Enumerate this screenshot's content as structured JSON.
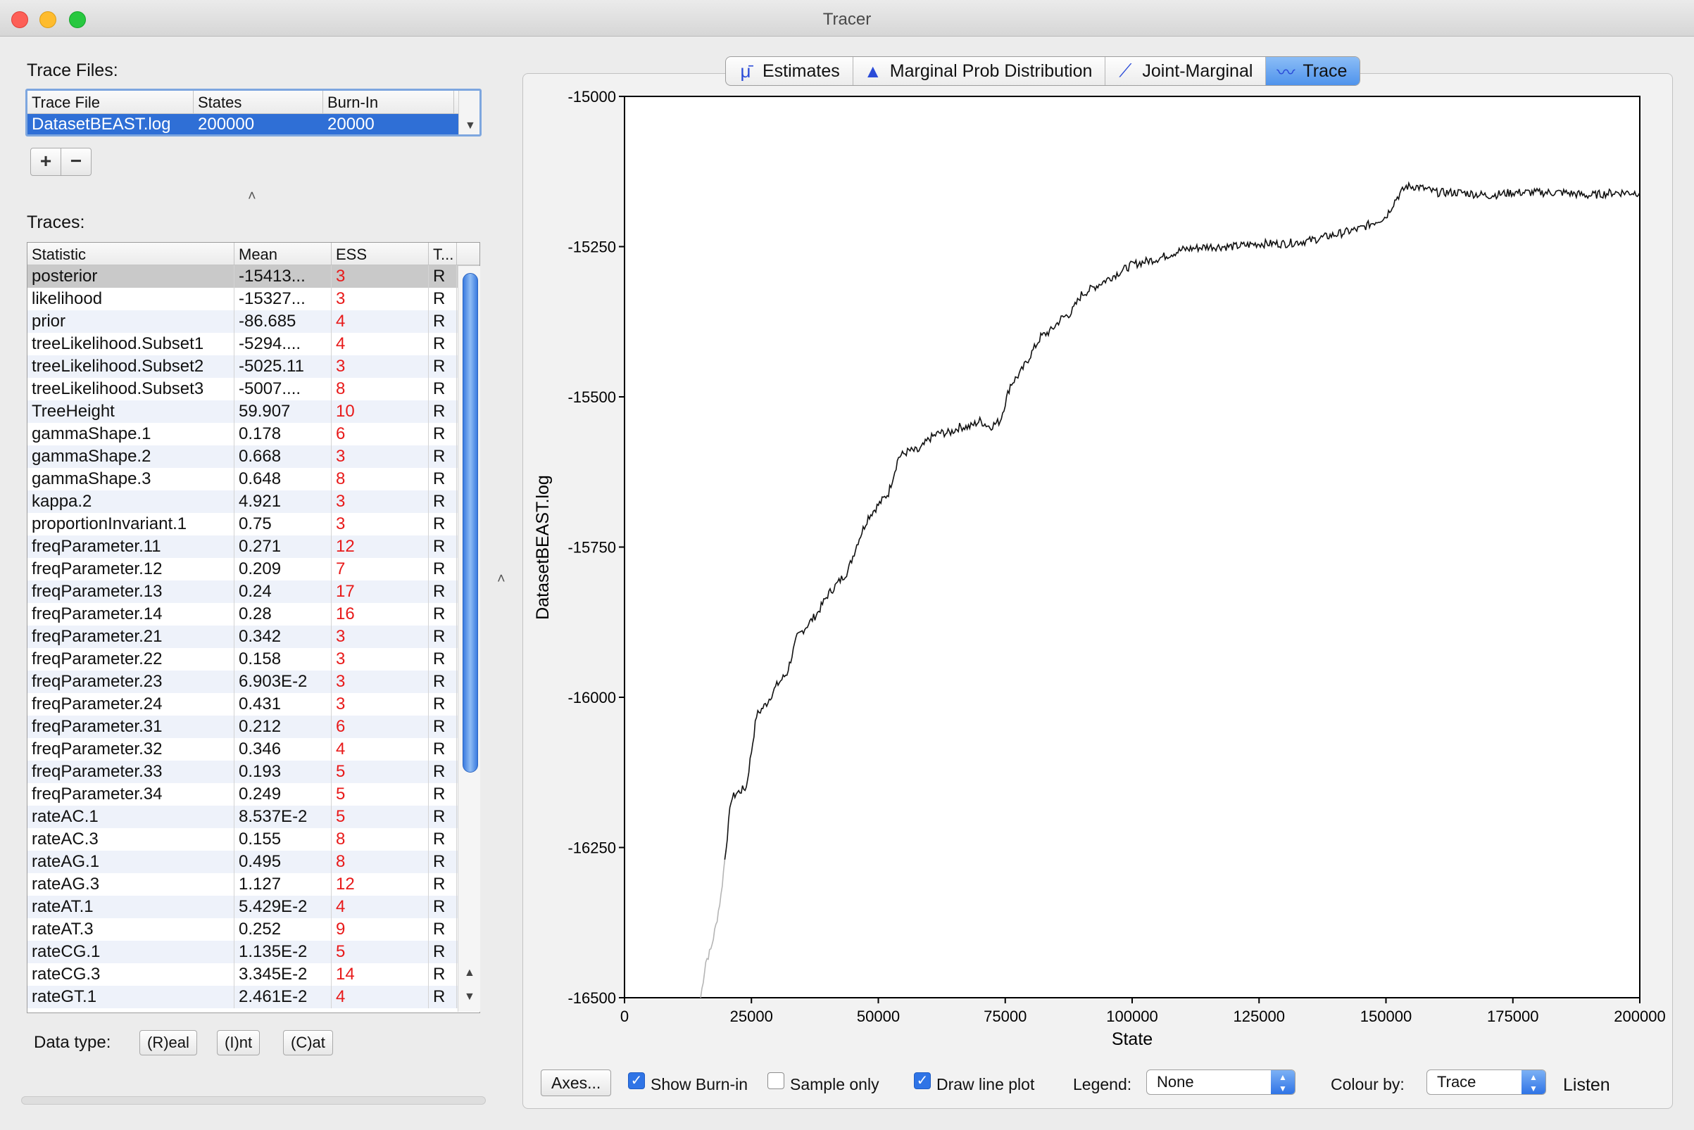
{
  "window": {
    "title": "Tracer"
  },
  "left": {
    "trace_files_label": "Trace Files:",
    "files_table": {
      "headers": [
        "Trace File",
        "States",
        "Burn-In"
      ],
      "rows": [
        [
          "DatasetBEAST.log",
          "200000",
          "20000"
        ]
      ]
    },
    "add_label": "+",
    "remove_label": "−",
    "traces_label": "Traces:",
    "traces_table": {
      "headers": [
        "Statistic",
        "Mean",
        "ESS",
        "T..."
      ],
      "rows": [
        [
          "posterior",
          "-15413...",
          "3",
          "R"
        ],
        [
          "likelihood",
          "-15327...",
          "3",
          "R"
        ],
        [
          "prior",
          "-86.685",
          "4",
          "R"
        ],
        [
          "treeLikelihood.Subset1",
          "-5294....",
          "4",
          "R"
        ],
        [
          "treeLikelihood.Subset2",
          "-5025.11",
          "3",
          "R"
        ],
        [
          "treeLikelihood.Subset3",
          "-5007....",
          "8",
          "R"
        ],
        [
          "TreeHeight",
          "59.907",
          "10",
          "R"
        ],
        [
          "gammaShape.1",
          "0.178",
          "6",
          "R"
        ],
        [
          "gammaShape.2",
          "0.668",
          "3",
          "R"
        ],
        [
          "gammaShape.3",
          "0.648",
          "8",
          "R"
        ],
        [
          "kappa.2",
          "4.921",
          "3",
          "R"
        ],
        [
          "proportionInvariant.1",
          "0.75",
          "3",
          "R"
        ],
        [
          "freqParameter.11",
          "0.271",
          "12",
          "R"
        ],
        [
          "freqParameter.12",
          "0.209",
          "7",
          "R"
        ],
        [
          "freqParameter.13",
          "0.24",
          "17",
          "R"
        ],
        [
          "freqParameter.14",
          "0.28",
          "16",
          "R"
        ],
        [
          "freqParameter.21",
          "0.342",
          "3",
          "R"
        ],
        [
          "freqParameter.22",
          "0.158",
          "3",
          "R"
        ],
        [
          "freqParameter.23",
          "6.903E-2",
          "3",
          "R"
        ],
        [
          "freqParameter.24",
          "0.431",
          "3",
          "R"
        ],
        [
          "freqParameter.31",
          "0.212",
          "6",
          "R"
        ],
        [
          "freqParameter.32",
          "0.346",
          "4",
          "R"
        ],
        [
          "freqParameter.33",
          "0.193",
          "5",
          "R"
        ],
        [
          "freqParameter.34",
          "0.249",
          "5",
          "R"
        ],
        [
          "rateAC.1",
          "8.537E-2",
          "5",
          "R"
        ],
        [
          "rateAC.3",
          "0.155",
          "8",
          "R"
        ],
        [
          "rateAG.1",
          "0.495",
          "8",
          "R"
        ],
        [
          "rateAG.3",
          "1.127",
          "12",
          "R"
        ],
        [
          "rateAT.1",
          "5.429E-2",
          "4",
          "R"
        ],
        [
          "rateAT.3",
          "0.252",
          "9",
          "R"
        ],
        [
          "rateCG.1",
          "1.135E-2",
          "5",
          "R"
        ],
        [
          "rateCG.3",
          "3.345E-2",
          "14",
          "R"
        ],
        [
          "rateGT.1",
          "2.461E-2",
          "4",
          "R"
        ]
      ]
    },
    "data_type_label": "Data type:",
    "data_type_buttons": [
      "(R)eal",
      "(I)nt",
      "(C)at"
    ]
  },
  "tabs": [
    {
      "label": "Estimates",
      "icon": "mu-icon"
    },
    {
      "label": "Marginal Prob Distribution",
      "icon": "density-icon"
    },
    {
      "label": "Joint-Marginal",
      "icon": "scatter-icon"
    },
    {
      "label": "Trace",
      "icon": "trace-icon",
      "active": true
    }
  ],
  "chart_data": {
    "type": "line",
    "xlabel": "State",
    "ylabel": "DatasetBEAST.log",
    "xlim": [
      0,
      200000
    ],
    "ylim": [
      -16500,
      -15000
    ],
    "x_ticks": [
      "0",
      "25000",
      "50000",
      "75000",
      "100000",
      "125000",
      "150000",
      "175000",
      "200000"
    ],
    "y_ticks": [
      "-15000",
      "-15250",
      "-15500",
      "-15750",
      "-16000",
      "-16250",
      "-16500"
    ],
    "burn_in": 20000,
    "series": [
      {
        "x": [
          15000,
          16000,
          17000,
          18000,
          19000,
          20000,
          21000,
          22000,
          24000,
          26000,
          28000,
          30000,
          32000,
          34000,
          36000,
          38000,
          40000,
          42000,
          44000,
          46000,
          48000,
          50000,
          52000,
          54000,
          56000,
          58000,
          60000,
          62000,
          64000,
          66000,
          68000,
          70000,
          72000,
          74000,
          76000,
          78000,
          80000,
          82000,
          84000,
          86000,
          88000,
          90000,
          92000,
          94000,
          96000,
          98000,
          100000,
          105000,
          110000,
          115000,
          120000,
          125000,
          130000,
          135000,
          140000,
          145000,
          150000,
          152000,
          154000,
          156000,
          160000,
          165000,
          170000,
          175000,
          180000,
          185000,
          190000,
          195000,
          200000
        ],
        "y": [
          -16500,
          -16440,
          -16420,
          -16380,
          -16330,
          -16250,
          -16170,
          -16160,
          -16150,
          -16030,
          -16010,
          -15980,
          -15960,
          -15900,
          -15880,
          -15860,
          -15830,
          -15810,
          -15790,
          -15740,
          -15700,
          -15680,
          -15660,
          -15600,
          -15590,
          -15590,
          -15570,
          -15560,
          -15560,
          -15550,
          -15550,
          -15540,
          -15550,
          -15540,
          -15480,
          -15460,
          -15430,
          -15400,
          -15390,
          -15370,
          -15360,
          -15330,
          -15320,
          -15310,
          -15300,
          -15290,
          -15280,
          -15270,
          -15255,
          -15250,
          -15250,
          -15245,
          -15245,
          -15240,
          -15230,
          -15220,
          -15200,
          -15170,
          -15150,
          -15150,
          -15160,
          -15160,
          -15165,
          -15160,
          -15160,
          -15160,
          -15165,
          -15160,
          -15160
        ]
      }
    ]
  },
  "controls": {
    "axes_label": "Axes...",
    "show_burnin_label": "Show Burn-in",
    "show_burnin_checked": true,
    "sample_only_label": "Sample only",
    "sample_only_checked": false,
    "draw_line_label": "Draw line plot",
    "draw_line_checked": true,
    "legend_label": "Legend:",
    "legend_value": "None",
    "colour_label": "Colour by:",
    "colour_value": "Trace",
    "listen_label": "Listen"
  }
}
